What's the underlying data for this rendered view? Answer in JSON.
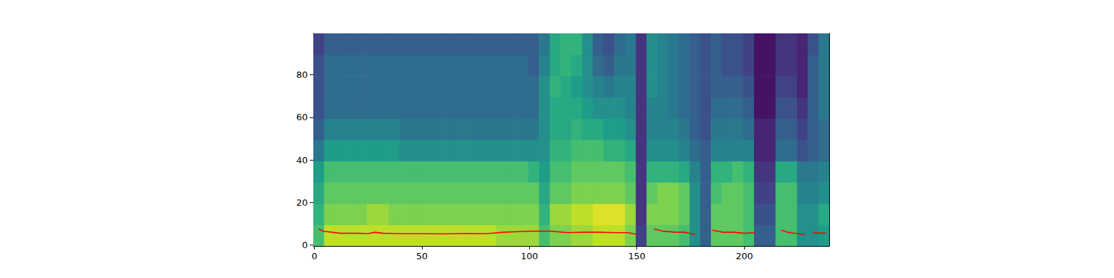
{
  "chart_data": {
    "type": "heatmap",
    "xlim": [
      -0.5,
      239.5
    ],
    "ylim": [
      -0.5,
      99.5
    ],
    "xticks": [
      0,
      50,
      100,
      150,
      200
    ],
    "yticks": [
      0,
      20,
      40,
      60,
      80
    ],
    "heatmap": {
      "x_edges": [
        -0.5,
        4.5,
        9.5,
        14.5,
        19.5,
        24.5,
        29.5,
        34.5,
        39.5,
        44.5,
        49.5,
        54.5,
        59.5,
        64.5,
        69.5,
        74.5,
        79.5,
        84.5,
        89.5,
        94.5,
        99.5,
        104.5,
        109.5,
        114.5,
        119.5,
        124.5,
        129.5,
        134.5,
        139.5,
        144.5,
        149.5,
        154.5,
        159.5,
        164.5,
        169.5,
        174.5,
        179.5,
        184.5,
        189.5,
        194.5,
        199.5,
        204.5,
        209.5,
        214.5,
        219.5,
        224.5,
        229.5,
        234.5,
        239.5
      ],
      "y_edges": [
        -0.5,
        9.5,
        19.5,
        29.5,
        39.5,
        49.5,
        59.5,
        69.5,
        79.5,
        89.5,
        99.5
      ],
      "clim": [
        0,
        10
      ],
      "cells": [
        [
          7,
          6.5,
          6,
          5.5,
          4,
          3,
          2.5,
          2.5,
          2.5,
          2
        ],
        [
          9,
          8,
          7.5,
          7,
          5.5,
          4.5,
          3.5,
          3.5,
          3.5,
          3
        ],
        [
          9,
          8,
          7.5,
          7,
          5.5,
          4.5,
          3.5,
          3.5,
          3.5,
          3
        ],
        [
          9,
          8,
          7.5,
          7,
          5.5,
          4.5,
          3.5,
          3.5,
          3.5,
          3
        ],
        [
          9,
          8,
          7.5,
          7,
          5.5,
          4.5,
          3.5,
          3.5,
          3.5,
          3
        ],
        [
          9,
          8.5,
          7.5,
          7,
          5.5,
          4.5,
          3.5,
          3.5,
          3.5,
          3
        ],
        [
          9,
          8.5,
          7.5,
          7,
          5.5,
          4.5,
          3.5,
          3.5,
          3.5,
          3
        ],
        [
          9,
          8,
          7.5,
          7,
          5.5,
          4.5,
          3.5,
          3.5,
          3.5,
          3
        ],
        [
          9,
          8,
          7.5,
          7,
          5,
          4,
          3.5,
          3.5,
          3.5,
          3
        ],
        [
          9,
          8,
          7.5,
          7,
          5,
          4,
          3.5,
          3.5,
          3.5,
          3
        ],
        [
          9,
          8,
          7.5,
          7,
          5,
          4,
          3.5,
          3.5,
          3.5,
          3
        ],
        [
          9,
          8,
          7.5,
          7,
          5,
          4,
          3.5,
          3.5,
          3.5,
          3
        ],
        [
          9,
          8,
          7.5,
          7,
          5,
          4,
          3.5,
          3.5,
          3.5,
          3
        ],
        [
          9,
          8,
          7.5,
          7,
          5,
          4,
          3.5,
          3.5,
          3.5,
          3
        ],
        [
          9,
          8,
          7.5,
          7,
          5,
          4,
          3.5,
          3.5,
          3.5,
          3
        ],
        [
          9,
          8,
          7.5,
          7,
          5,
          4,
          3.5,
          3.5,
          3.5,
          3
        ],
        [
          9,
          8,
          7.5,
          7,
          5,
          4,
          3.5,
          3.5,
          3.5,
          3
        ],
        [
          8.5,
          8,
          7.5,
          7,
          5,
          4,
          3.5,
          3.5,
          3.5,
          3
        ],
        [
          8.5,
          8,
          7.5,
          7,
          5,
          4,
          3.5,
          3.5,
          3.5,
          3
        ],
        [
          8.5,
          8,
          7.5,
          7,
          5,
          4,
          3.5,
          3.5,
          3.5,
          3
        ],
        [
          8.5,
          8,
          7.5,
          6.5,
          5,
          4,
          3.5,
          3.5,
          3,
          3
        ],
        [
          7,
          6.5,
          6,
          5.5,
          5,
          5,
          5,
          5,
          4.5,
          4
        ],
        [
          8,
          8.5,
          7.5,
          7,
          6.5,
          6,
          6,
          6.5,
          6,
          6
        ],
        [
          8,
          8.5,
          7.5,
          7,
          6.5,
          6,
          6,
          6,
          6.5,
          6.5
        ],
        [
          8.5,
          9,
          8,
          7.5,
          7,
          6.5,
          6,
          5.5,
          6,
          6.5
        ],
        [
          8.5,
          9,
          8,
          7.5,
          7,
          6,
          5.5,
          5,
          5,
          5
        ],
        [
          9,
          9.5,
          8,
          7.5,
          7,
          6,
          5,
          4.5,
          3.5,
          3
        ],
        [
          9,
          9.5,
          8,
          7.5,
          6.5,
          5.5,
          5,
          4,
          3,
          2.5
        ],
        [
          9,
          9.5,
          8,
          7.5,
          6.5,
          5.5,
          5,
          4.5,
          4,
          3.5
        ],
        [
          8,
          8.5,
          7.5,
          7,
          6,
          5,
          4.5,
          4.5,
          4,
          4
        ],
        [
          2,
          1.5,
          1.5,
          1.5,
          1.5,
          1.5,
          1.5,
          1.5,
          1.5,
          1.5
        ],
        [
          7.5,
          8,
          7.5,
          6.5,
          5,
          4.5,
          4.5,
          5,
          5,
          5
        ],
        [
          7.5,
          8,
          8,
          6.5,
          5,
          4.5,
          4.5,
          4.5,
          4.5,
          4.5
        ],
        [
          7.5,
          8,
          8,
          6.5,
          5,
          4.5,
          4,
          4,
          4,
          4
        ],
        [
          7,
          7.5,
          7.5,
          6,
          4.5,
          4,
          3.5,
          3.5,
          3.5,
          3.5
        ],
        [
          5,
          5,
          5,
          4.5,
          3.5,
          3,
          3,
          3,
          3,
          3
        ],
        [
          3,
          3,
          3,
          3,
          3,
          2.5,
          2.5,
          2.5,
          2.5,
          2.5
        ],
        [
          7.5,
          7.5,
          7,
          6.5,
          4.5,
          4,
          3.5,
          3,
          3,
          3
        ],
        [
          7.5,
          7.5,
          7.5,
          6.5,
          4.5,
          4,
          3.5,
          3,
          2.5,
          2.5
        ],
        [
          7.5,
          7.5,
          7.5,
          7,
          4.5,
          4,
          3.5,
          3,
          2.5,
          2.5
        ],
        [
          7,
          7,
          7,
          6.5,
          4.5,
          3.5,
          3,
          2.5,
          2,
          2
        ],
        [
          3,
          2.5,
          2,
          1.5,
          1,
          1,
          0.5,
          0.5,
          0.5,
          0.5
        ],
        [
          3,
          2.5,
          2,
          1.5,
          1,
          1,
          0.5,
          0.5,
          0.5,
          0.5
        ],
        [
          7,
          7,
          7,
          6,
          3.5,
          3,
          2.5,
          2,
          1.5,
          1.5
        ],
        [
          7,
          7,
          7,
          6,
          3.5,
          3,
          2.5,
          2,
          1.5,
          1.5
        ],
        [
          5,
          5,
          4.5,
          4,
          2.5,
          2,
          1.5,
          1,
          1,
          1
        ],
        [
          5,
          5,
          4.5,
          4,
          3,
          3,
          3,
          3,
          3,
          2.5
        ],
        [
          5.5,
          6,
          5,
          4.5,
          3.5,
          3.5,
          4,
          4,
          4,
          4
        ]
      ]
    },
    "series": [
      {
        "type": "line",
        "color": "#ff0000",
        "x": [
          2,
          4,
          8,
          12,
          20,
          25,
          28,
          32,
          40,
          50,
          60,
          70,
          80,
          88,
          95,
          102,
          110,
          118,
          125,
          132,
          140,
          146,
          150,
          154,
          158,
          162,
          168,
          172,
          177,
          181,
          185,
          190,
          195,
          200,
          205,
          211,
          217,
          220,
          225,
          228,
          230,
          232,
          235,
          238
        ],
        "values": [
          7.5,
          6.5,
          6,
          5.5,
          5.5,
          5.3,
          6,
          5.5,
          5.3,
          5.3,
          5.2,
          5.4,
          5.3,
          6,
          6.3,
          6.5,
          6.5,
          5.8,
          6,
          6,
          5.8,
          5.8,
          5,
          null,
          7.5,
          6.5,
          6,
          6,
          5,
          null,
          7,
          6,
          6,
          5.5,
          5.8,
          null,
          7,
          6,
          5.3,
          5,
          null,
          6,
          5.5,
          5.6
        ]
      }
    ]
  }
}
